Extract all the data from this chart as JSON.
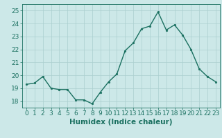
{
  "x": [
    0,
    1,
    2,
    3,
    4,
    5,
    6,
    7,
    8,
    9,
    10,
    11,
    12,
    13,
    14,
    15,
    16,
    17,
    18,
    19,
    20,
    21,
    22,
    23
  ],
  "y": [
    19.3,
    19.4,
    19.9,
    19.0,
    18.9,
    18.9,
    18.1,
    18.1,
    17.8,
    18.7,
    19.5,
    20.1,
    21.9,
    22.5,
    23.6,
    23.8,
    24.9,
    23.5,
    23.9,
    23.1,
    22.0,
    20.5,
    19.9,
    19.5
  ],
  "line_color": "#1a7060",
  "marker_color": "#1a7060",
  "bg_color": "#cce8e8",
  "grid_color": "#aacfcf",
  "xlabel": "Humidex (Indice chaleur)",
  "ylim": [
    17.5,
    25.5
  ],
  "xlim": [
    -0.5,
    23.5
  ],
  "yticks": [
    18,
    19,
    20,
    21,
    22,
    23,
    24,
    25
  ],
  "xticks": [
    0,
    1,
    2,
    3,
    4,
    5,
    6,
    7,
    8,
    9,
    10,
    11,
    12,
    13,
    14,
    15,
    16,
    17,
    18,
    19,
    20,
    21,
    22,
    23
  ],
  "marker_size": 2.0,
  "line_width": 1.0,
  "xlabel_fontsize": 7.5,
  "tick_fontsize": 6.5
}
